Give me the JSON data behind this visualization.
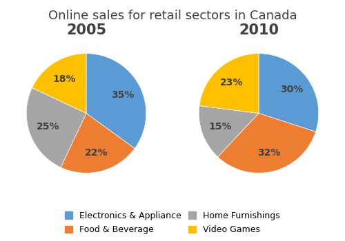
{
  "title": "Online sales for retail sectors in Canada",
  "title_fontsize": 13,
  "years": [
    "2005",
    "2010"
  ],
  "year_fontsize": 15,
  "categories": [
    "Electronics & Appliance",
    "Food & Beverage",
    "Home Furnishings",
    "Video Games"
  ],
  "colors": [
    "#5B9BD5",
    "#ED7D31",
    "#A5A5A5",
    "#FFC000"
  ],
  "values_2005": [
    35,
    22,
    25,
    18
  ],
  "values_2010": [
    30,
    32,
    15,
    23
  ],
  "startangle": 90,
  "legend_fontsize": 9,
  "pct_fontsize": 10,
  "legend_order": [
    0,
    1,
    2,
    3
  ]
}
